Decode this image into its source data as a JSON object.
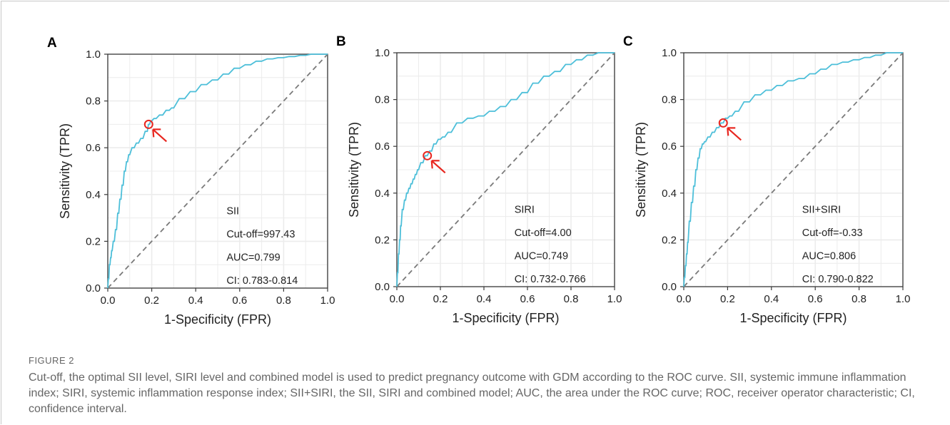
{
  "figure": {
    "label": "FIGURE 2",
    "caption": "Cut-off, the optimal SII level, SIRI level and combined model is used to predict pregnancy outcome with GDM according to the ROC curve. SII, systemic immune inflammation index; SIRI, systemic inflammation response index; SII+SIRI, the SII, SIRI and combined model; AUC, the area under the ROC curve; ROC, receiver operator characteristic; CI, confidence interval."
  },
  "colors": {
    "curve": "#4dbfd9",
    "reference": "#7a7a7a",
    "marker": "#e8261f",
    "grid": "#ececec"
  },
  "chart_data": [
    {
      "type": "line",
      "panel": "A",
      "xlabel": "1-Specificity (FPR)",
      "ylabel": "Sensitivity (TPR)",
      "xlim": [
        0,
        1
      ],
      "ylim": [
        0,
        1
      ],
      "x_ticks": [
        "0.0",
        "0.2",
        "0.4",
        "0.6",
        "0.8",
        "1.0"
      ],
      "y_ticks": [
        "0.0",
        "0.2",
        "0.4",
        "0.6",
        "0.8",
        "1.0"
      ],
      "grid": true,
      "legend_position": "bottom-right",
      "annotation": [
        "SII",
        "Cut-off=997.43",
        "AUC=0.799",
        "CI: 0.783-0.814"
      ],
      "cutoff_point": {
        "x": 0.186,
        "y": 0.7
      },
      "series": [
        {
          "x": [
            0.0,
            0.005,
            0.01,
            0.015,
            0.02,
            0.03,
            0.04,
            0.05,
            0.06,
            0.07,
            0.08,
            0.09,
            0.1,
            0.12,
            0.14,
            0.16,
            0.18,
            0.19,
            0.2,
            0.22,
            0.25,
            0.28,
            0.3,
            0.35,
            0.4,
            0.45,
            0.5,
            0.55,
            0.6,
            0.65,
            0.7,
            0.75,
            0.8,
            0.85,
            0.9,
            0.95,
            1.0
          ],
          "y": [
            0.0,
            0.04,
            0.1,
            0.13,
            0.16,
            0.2,
            0.25,
            0.32,
            0.38,
            0.44,
            0.5,
            0.54,
            0.57,
            0.6,
            0.62,
            0.64,
            0.67,
            0.7,
            0.715,
            0.725,
            0.74,
            0.76,
            0.77,
            0.81,
            0.84,
            0.87,
            0.89,
            0.915,
            0.94,
            0.955,
            0.97,
            0.98,
            0.985,
            0.99,
            0.995,
            1.0,
            1.0
          ]
        },
        {
          "x": [
            0,
            1
          ],
          "y": [
            0,
            1
          ]
        }
      ]
    },
    {
      "type": "line",
      "panel": "B",
      "xlabel": "1-Specificity (FPR)",
      "ylabel": "Sensitivity (TPR)",
      "xlim": [
        0,
        1
      ],
      "ylim": [
        0,
        1
      ],
      "x_ticks": [
        "0.0",
        "0.2",
        "0.4",
        "0.6",
        "0.8",
        "1.0"
      ],
      "y_ticks": [
        "0.0",
        "0.2",
        "0.4",
        "0.6",
        "0.8",
        "1.0"
      ],
      "grid": true,
      "legend_position": "bottom-right",
      "annotation": [
        "SIRI",
        "Cut-off=4.00",
        "AUC=0.749",
        "CI: 0.732-0.766"
      ],
      "cutoff_point": {
        "x": 0.14,
        "y": 0.56
      },
      "series": [
        {
          "x": [
            0.0,
            0.005,
            0.01,
            0.015,
            0.02,
            0.03,
            0.04,
            0.05,
            0.06,
            0.07,
            0.08,
            0.09,
            0.1,
            0.12,
            0.14,
            0.16,
            0.18,
            0.2,
            0.22,
            0.25,
            0.3,
            0.35,
            0.4,
            0.45,
            0.5,
            0.55,
            0.6,
            0.65,
            0.7,
            0.75,
            0.8,
            0.85,
            0.9,
            0.95,
            1.0
          ],
          "y": [
            0.0,
            0.06,
            0.14,
            0.2,
            0.26,
            0.33,
            0.37,
            0.4,
            0.42,
            0.44,
            0.46,
            0.48,
            0.5,
            0.53,
            0.56,
            0.58,
            0.61,
            0.63,
            0.64,
            0.66,
            0.7,
            0.72,
            0.73,
            0.75,
            0.77,
            0.8,
            0.83,
            0.87,
            0.9,
            0.92,
            0.95,
            0.97,
            0.99,
            1.0,
            1.0
          ]
        },
        {
          "x": [
            0,
            1
          ],
          "y": [
            0,
            1
          ]
        }
      ]
    },
    {
      "type": "line",
      "panel": "C",
      "xlabel": "1-Specificity (FPR)",
      "ylabel": "Sensitivity (TPR)",
      "xlim": [
        0,
        1
      ],
      "ylim": [
        0,
        1
      ],
      "x_ticks": [
        "0.0",
        "0.2",
        "0.4",
        "0.6",
        "0.8",
        "1.0"
      ],
      "y_ticks": [
        "0.0",
        "0.2",
        "0.4",
        "0.6",
        "0.8",
        "1.0"
      ],
      "grid": true,
      "legend_position": "bottom-right",
      "annotation": [
        "SII+SIRI",
        "Cut-off=-0.33",
        "AUC=0.806",
        "CI: 0.790-0.822"
      ],
      "cutoff_point": {
        "x": 0.18,
        "y": 0.7
      },
      "series": [
        {
          "x": [
            0.0,
            0.005,
            0.01,
            0.015,
            0.02,
            0.03,
            0.04,
            0.05,
            0.06,
            0.07,
            0.08,
            0.09,
            0.1,
            0.12,
            0.14,
            0.16,
            0.18,
            0.2,
            0.22,
            0.25,
            0.3,
            0.35,
            0.4,
            0.45,
            0.5,
            0.55,
            0.6,
            0.65,
            0.7,
            0.75,
            0.8,
            0.85,
            0.9,
            0.95,
            1.0
          ],
          "y": [
            0.0,
            0.04,
            0.09,
            0.14,
            0.19,
            0.28,
            0.36,
            0.43,
            0.5,
            0.55,
            0.59,
            0.61,
            0.62,
            0.64,
            0.66,
            0.68,
            0.7,
            0.72,
            0.73,
            0.75,
            0.79,
            0.82,
            0.84,
            0.86,
            0.88,
            0.89,
            0.91,
            0.93,
            0.95,
            0.96,
            0.97,
            0.98,
            0.99,
            1.0,
            1.0
          ]
        },
        {
          "x": [
            0,
            1
          ],
          "y": [
            0,
            1
          ]
        }
      ]
    }
  ]
}
